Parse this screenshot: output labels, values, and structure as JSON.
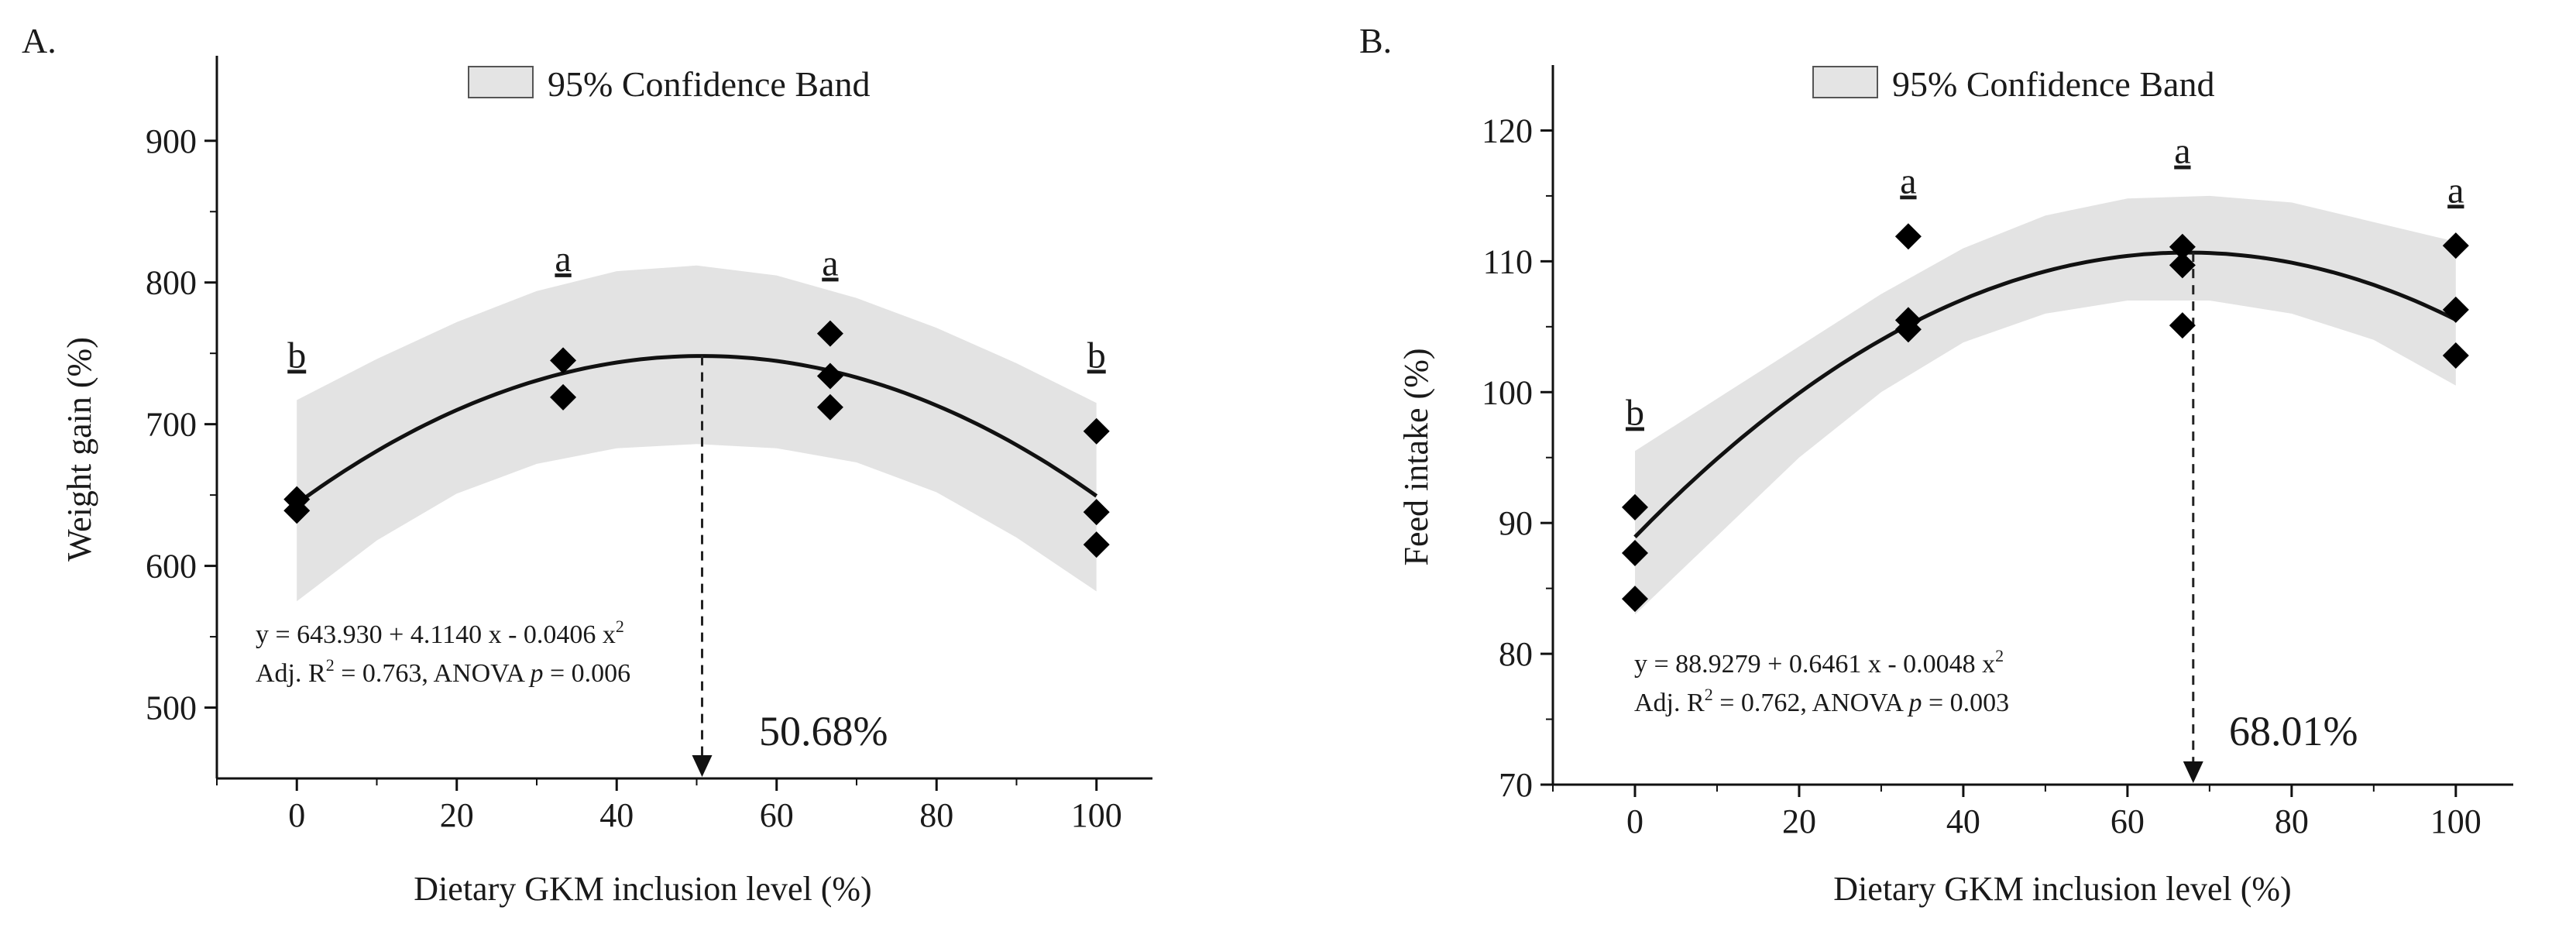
{
  "chart_data": [
    {
      "panel_label": "A.",
      "type": "scatter",
      "title": "",
      "xlabel": "Dietary GKM inclusion level (%)",
      "ylabel": "Weight gain (%)",
      "xlim": [
        -10,
        107
      ],
      "ylim": [
        450,
        960
      ],
      "xticks": [
        0,
        20,
        40,
        60,
        80,
        100
      ],
      "yticks": [
        500,
        600,
        700,
        800,
        900
      ],
      "legend": {
        "label": "95% Confidence Band",
        "position": "top-center"
      },
      "points": [
        {
          "x": 0,
          "y": 647
        },
        {
          "x": 0,
          "y": 639
        },
        {
          "x": 33.3,
          "y": 745
        },
        {
          "x": 33.3,
          "y": 719
        },
        {
          "x": 66.7,
          "y": 764
        },
        {
          "x": 66.7,
          "y": 734
        },
        {
          "x": 66.7,
          "y": 712
        },
        {
          "x": 100,
          "y": 695
        },
        {
          "x": 100,
          "y": 638
        },
        {
          "x": 100,
          "y": 615
        }
      ],
      "fit": {
        "a": 643.93,
        "b": 4.114,
        "c": -0.0406,
        "x_range": [
          0,
          100
        ]
      },
      "band": [
        {
          "x": 0,
          "lo": 575,
          "hi": 717
        },
        {
          "x": 10,
          "lo": 618,
          "hi": 746
        },
        {
          "x": 20,
          "lo": 651,
          "hi": 772
        },
        {
          "x": 30,
          "lo": 672,
          "hi": 794
        },
        {
          "x": 40,
          "lo": 683,
          "hi": 808
        },
        {
          "x": 50,
          "lo": 686,
          "hi": 812
        },
        {
          "x": 60,
          "lo": 683,
          "hi": 805
        },
        {
          "x": 70,
          "lo": 673,
          "hi": 789
        },
        {
          "x": 80,
          "lo": 652,
          "hi": 768
        },
        {
          "x": 90,
          "lo": 620,
          "hi": 743
        },
        {
          "x": 100,
          "lo": 582,
          "hi": 715
        }
      ],
      "letters": [
        {
          "x": 0,
          "y": 740,
          "text": "b"
        },
        {
          "x": 33.3,
          "y": 808,
          "text": "a"
        },
        {
          "x": 66.7,
          "y": 805,
          "text": "a"
        },
        {
          "x": 100,
          "y": 740,
          "text": "b"
        }
      ],
      "equation": "y = 643.930 + 4.1140 x - 0.0406 x",
      "equation_sup": "2",
      "stats": {
        "pre": "Adj. R",
        "sup": "2",
        "mid": " = 0.763, ANOVA ",
        "p": "p",
        "post": " = 0.006"
      },
      "optimum": {
        "x": 50.68,
        "label": "50.68%"
      }
    },
    {
      "panel_label": "B.",
      "type": "scatter",
      "title": "",
      "xlabel": "Dietary GKM inclusion level (%)",
      "ylabel": "Feed intake (%)",
      "xlim": [
        -10,
        107
      ],
      "ylim": [
        70,
        125
      ],
      "xticks": [
        0,
        20,
        40,
        60,
        80,
        100
      ],
      "yticks": [
        70,
        80,
        90,
        100,
        110,
        120
      ],
      "legend": {
        "label": "95% Confidence Band",
        "position": "top-center"
      },
      "points": [
        {
          "x": 0,
          "y": 91.2
        },
        {
          "x": 0,
          "y": 87.7
        },
        {
          "x": 0,
          "y": 84.2
        },
        {
          "x": 33.3,
          "y": 111.9
        },
        {
          "x": 33.3,
          "y": 105.5
        },
        {
          "x": 33.3,
          "y": 104.8
        },
        {
          "x": 66.7,
          "y": 111.1
        },
        {
          "x": 66.7,
          "y": 109.7
        },
        {
          "x": 66.7,
          "y": 105.1
        },
        {
          "x": 100,
          "y": 111.2
        },
        {
          "x": 100,
          "y": 106.3
        },
        {
          "x": 100,
          "y": 102.8
        }
      ],
      "fit": {
        "a": 88.9279,
        "b": 0.6461,
        "c": -0.0048,
        "x_range": [
          0,
          100
        ]
      },
      "band": [
        {
          "x": 0,
          "lo": 83.0,
          "hi": 95.5
        },
        {
          "x": 10,
          "lo": 89.0,
          "hi": 99.5
        },
        {
          "x": 20,
          "lo": 95.0,
          "hi": 103.5
        },
        {
          "x": 30,
          "lo": 100.0,
          "hi": 107.5
        },
        {
          "x": 40,
          "lo": 103.8,
          "hi": 111.0
        },
        {
          "x": 50,
          "lo": 106.0,
          "hi": 113.5
        },
        {
          "x": 60,
          "lo": 107.0,
          "hi": 114.8
        },
        {
          "x": 70,
          "lo": 107.0,
          "hi": 115.0
        },
        {
          "x": 80,
          "lo": 106.0,
          "hi": 114.5
        },
        {
          "x": 90,
          "lo": 104.0,
          "hi": 113.0
        },
        {
          "x": 100,
          "lo": 100.5,
          "hi": 111.5
        }
      ],
      "letters": [
        {
          "x": 0,
          "y": 97.5,
          "text": "b"
        },
        {
          "x": 33.3,
          "y": 115.2,
          "text": "a"
        },
        {
          "x": 66.7,
          "y": 117.5,
          "text": "a"
        },
        {
          "x": 100,
          "y": 114.5,
          "text": "a"
        }
      ],
      "equation": "y = 88.9279 + 0.6461 x - 0.0048  x",
      "equation_sup": "2",
      "stats": {
        "pre": "Adj. R",
        "sup": "2",
        "mid": "  = 0.762, ANOVA ",
        "p": "p",
        "post": " = 0.003"
      },
      "optimum": {
        "x": 68.01,
        "label": "68.01%"
      }
    }
  ]
}
